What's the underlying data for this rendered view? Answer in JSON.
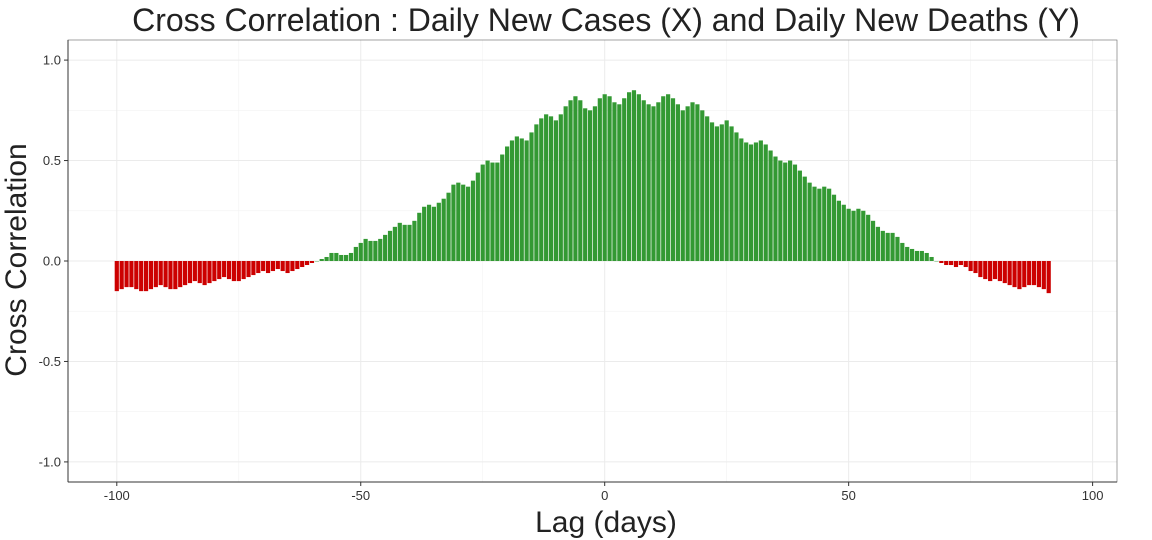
{
  "chart_data": {
    "type": "bar",
    "title": "Cross Correlation : Daily New Cases (X) and Daily New Deaths (Y)",
    "xlabel": "Lag (days)",
    "ylabel": "Cross Correlation",
    "xlim": [
      -110,
      105
    ],
    "ylim": [
      -1.1,
      1.1
    ],
    "x_ticks": [
      -100,
      -50,
      0,
      50,
      100
    ],
    "y_ticks": [
      -1.0,
      -0.5,
      0.0,
      0.5,
      1.0
    ],
    "y_tick_labels": [
      "-1.0",
      "-0.5",
      "0.0",
      "0.5",
      "1.0"
    ],
    "grid": true,
    "colors": {
      "positive": "#339933",
      "negative": "#cc0000"
    },
    "x_start": -100,
    "values": [
      -0.15,
      -0.14,
      -0.13,
      -0.13,
      -0.14,
      -0.15,
      -0.15,
      -0.14,
      -0.13,
      -0.12,
      -0.13,
      -0.14,
      -0.14,
      -0.13,
      -0.12,
      -0.11,
      -0.1,
      -0.11,
      -0.12,
      -0.11,
      -0.1,
      -0.09,
      -0.08,
      -0.09,
      -0.1,
      -0.1,
      -0.09,
      -0.08,
      -0.07,
      -0.06,
      -0.05,
      -0.06,
      -0.05,
      -0.04,
      -0.05,
      -0.06,
      -0.05,
      -0.04,
      -0.03,
      -0.02,
      -0.01,
      0.0,
      0.01,
      0.02,
      0.04,
      0.04,
      0.03,
      0.03,
      0.04,
      0.07,
      0.09,
      0.11,
      0.1,
      0.1,
      0.11,
      0.13,
      0.15,
      0.17,
      0.19,
      0.18,
      0.18,
      0.2,
      0.24,
      0.27,
      0.28,
      0.27,
      0.29,
      0.31,
      0.34,
      0.38,
      0.39,
      0.38,
      0.37,
      0.4,
      0.44,
      0.48,
      0.5,
      0.49,
      0.49,
      0.53,
      0.57,
      0.6,
      0.62,
      0.61,
      0.6,
      0.64,
      0.68,
      0.71,
      0.73,
      0.72,
      0.7,
      0.73,
      0.77,
      0.8,
      0.82,
      0.8,
      0.76,
      0.75,
      0.77,
      0.81,
      0.83,
      0.82,
      0.79,
      0.78,
      0.81,
      0.84,
      0.85,
      0.83,
      0.8,
      0.78,
      0.77,
      0.79,
      0.82,
      0.83,
      0.81,
      0.78,
      0.75,
      0.77,
      0.79,
      0.78,
      0.75,
      0.72,
      0.69,
      0.67,
      0.68,
      0.7,
      0.67,
      0.64,
      0.61,
      0.59,
      0.58,
      0.59,
      0.6,
      0.58,
      0.55,
      0.52,
      0.5,
      0.49,
      0.5,
      0.48,
      0.45,
      0.42,
      0.39,
      0.37,
      0.36,
      0.37,
      0.36,
      0.33,
      0.3,
      0.28,
      0.26,
      0.25,
      0.26,
      0.25,
      0.23,
      0.2,
      0.17,
      0.15,
      0.14,
      0.14,
      0.12,
      0.09,
      0.07,
      0.06,
      0.05,
      0.05,
      0.04,
      0.02,
      0.0,
      -0.01,
      -0.02,
      -0.02,
      -0.03,
      -0.02,
      -0.03,
      -0.05,
      -0.06,
      -0.08,
      -0.09,
      -0.1,
      -0.09,
      -0.1,
      -0.11,
      -0.12,
      -0.13,
      -0.14,
      -0.13,
      -0.12,
      -0.12,
      -0.13,
      -0.14,
      -0.16
    ]
  }
}
